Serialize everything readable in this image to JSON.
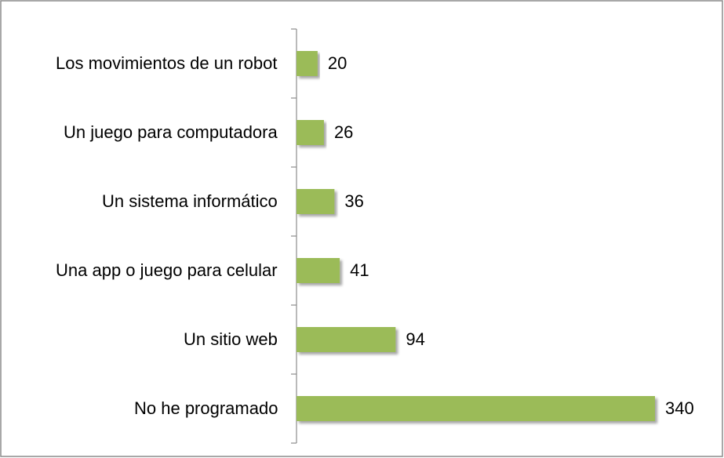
{
  "chart_data": {
    "type": "bar",
    "orientation": "horizontal",
    "categories": [
      "Los movimientos de un robot",
      "Un juego para computadora",
      "Un sistema informático",
      "Una app o juego para celular",
      "Un sitio web",
      "No he programado"
    ],
    "values": [
      20,
      26,
      36,
      41,
      94,
      340
    ],
    "color": "#9bbb59"
  }
}
